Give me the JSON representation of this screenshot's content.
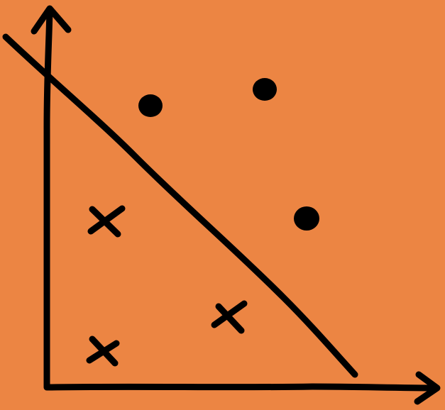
{
  "colors": {
    "background": "#EC8543",
    "ink": "#000000"
  },
  "diagram": {
    "kind": "linear-separator-sketch",
    "axes": [
      "vertical-axis-arrow",
      "horizontal-axis-arrow"
    ],
    "class_a_marker": "dot",
    "class_b_marker": "cross",
    "class_a_count": 3,
    "class_b_count": 3
  }
}
